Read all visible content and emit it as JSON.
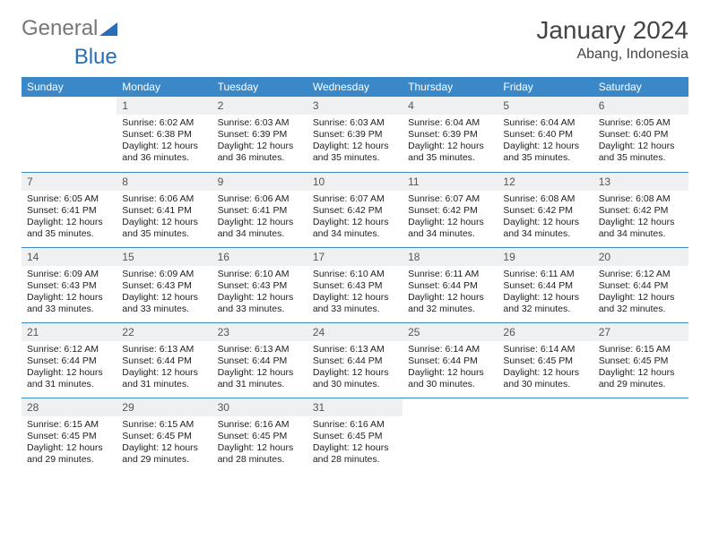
{
  "brand": {
    "part1": "General",
    "part2": "Blue"
  },
  "title": "January 2024",
  "location": "Abang, Indonesia",
  "colors": {
    "header_bg": "#3b88c9",
    "header_text": "#ffffff",
    "daynum_bg": "#eef0f2",
    "border": "#3b88c9",
    "logo_blue": "#2a6fb5",
    "logo_gray": "#777777"
  },
  "weekdays": [
    "Sunday",
    "Monday",
    "Tuesday",
    "Wednesday",
    "Thursday",
    "Friday",
    "Saturday"
  ],
  "grid": [
    [
      null,
      {
        "n": "1",
        "sr": "6:02 AM",
        "ss": "6:38 PM",
        "dl": "12 hours and 36 minutes."
      },
      {
        "n": "2",
        "sr": "6:03 AM",
        "ss": "6:39 PM",
        "dl": "12 hours and 36 minutes."
      },
      {
        "n": "3",
        "sr": "6:03 AM",
        "ss": "6:39 PM",
        "dl": "12 hours and 35 minutes."
      },
      {
        "n": "4",
        "sr": "6:04 AM",
        "ss": "6:39 PM",
        "dl": "12 hours and 35 minutes."
      },
      {
        "n": "5",
        "sr": "6:04 AM",
        "ss": "6:40 PM",
        "dl": "12 hours and 35 minutes."
      },
      {
        "n": "6",
        "sr": "6:05 AM",
        "ss": "6:40 PM",
        "dl": "12 hours and 35 minutes."
      }
    ],
    [
      {
        "n": "7",
        "sr": "6:05 AM",
        "ss": "6:41 PM",
        "dl": "12 hours and 35 minutes."
      },
      {
        "n": "8",
        "sr": "6:06 AM",
        "ss": "6:41 PM",
        "dl": "12 hours and 35 minutes."
      },
      {
        "n": "9",
        "sr": "6:06 AM",
        "ss": "6:41 PM",
        "dl": "12 hours and 34 minutes."
      },
      {
        "n": "10",
        "sr": "6:07 AM",
        "ss": "6:42 PM",
        "dl": "12 hours and 34 minutes."
      },
      {
        "n": "11",
        "sr": "6:07 AM",
        "ss": "6:42 PM",
        "dl": "12 hours and 34 minutes."
      },
      {
        "n": "12",
        "sr": "6:08 AM",
        "ss": "6:42 PM",
        "dl": "12 hours and 34 minutes."
      },
      {
        "n": "13",
        "sr": "6:08 AM",
        "ss": "6:42 PM",
        "dl": "12 hours and 34 minutes."
      }
    ],
    [
      {
        "n": "14",
        "sr": "6:09 AM",
        "ss": "6:43 PM",
        "dl": "12 hours and 33 minutes."
      },
      {
        "n": "15",
        "sr": "6:09 AM",
        "ss": "6:43 PM",
        "dl": "12 hours and 33 minutes."
      },
      {
        "n": "16",
        "sr": "6:10 AM",
        "ss": "6:43 PM",
        "dl": "12 hours and 33 minutes."
      },
      {
        "n": "17",
        "sr": "6:10 AM",
        "ss": "6:43 PM",
        "dl": "12 hours and 33 minutes."
      },
      {
        "n": "18",
        "sr": "6:11 AM",
        "ss": "6:44 PM",
        "dl": "12 hours and 32 minutes."
      },
      {
        "n": "19",
        "sr": "6:11 AM",
        "ss": "6:44 PM",
        "dl": "12 hours and 32 minutes."
      },
      {
        "n": "20",
        "sr": "6:12 AM",
        "ss": "6:44 PM",
        "dl": "12 hours and 32 minutes."
      }
    ],
    [
      {
        "n": "21",
        "sr": "6:12 AM",
        "ss": "6:44 PM",
        "dl": "12 hours and 31 minutes."
      },
      {
        "n": "22",
        "sr": "6:13 AM",
        "ss": "6:44 PM",
        "dl": "12 hours and 31 minutes."
      },
      {
        "n": "23",
        "sr": "6:13 AM",
        "ss": "6:44 PM",
        "dl": "12 hours and 31 minutes."
      },
      {
        "n": "24",
        "sr": "6:13 AM",
        "ss": "6:44 PM",
        "dl": "12 hours and 30 minutes."
      },
      {
        "n": "25",
        "sr": "6:14 AM",
        "ss": "6:44 PM",
        "dl": "12 hours and 30 minutes."
      },
      {
        "n": "26",
        "sr": "6:14 AM",
        "ss": "6:45 PM",
        "dl": "12 hours and 30 minutes."
      },
      {
        "n": "27",
        "sr": "6:15 AM",
        "ss": "6:45 PM",
        "dl": "12 hours and 29 minutes."
      }
    ],
    [
      {
        "n": "28",
        "sr": "6:15 AM",
        "ss": "6:45 PM",
        "dl": "12 hours and 29 minutes."
      },
      {
        "n": "29",
        "sr": "6:15 AM",
        "ss": "6:45 PM",
        "dl": "12 hours and 29 minutes."
      },
      {
        "n": "30",
        "sr": "6:16 AM",
        "ss": "6:45 PM",
        "dl": "12 hours and 28 minutes."
      },
      {
        "n": "31",
        "sr": "6:16 AM",
        "ss": "6:45 PM",
        "dl": "12 hours and 28 minutes."
      },
      null,
      null,
      null
    ]
  ],
  "labels": {
    "sunrise": "Sunrise:",
    "sunset": "Sunset:",
    "daylight": "Daylight:"
  }
}
